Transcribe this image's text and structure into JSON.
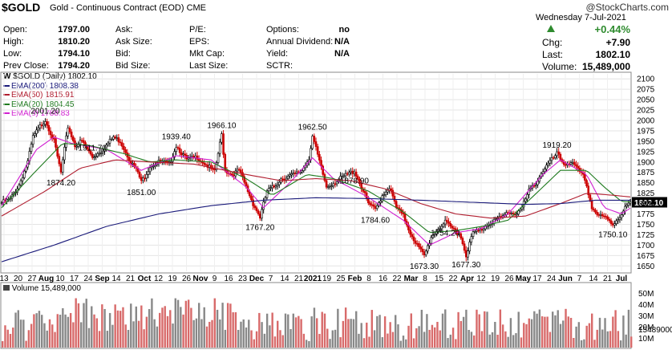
{
  "header": {
    "symbol": "$GOLD",
    "description": "Gold - Continuous Contract (EOD)",
    "exchange": "CME",
    "stamp": "@StockCharts.com",
    "date_line": "Wednesday  7-Jul-2021",
    "change_pct": "+0.44%",
    "col1": [
      {
        "label": "Open:",
        "value": "1797.00"
      },
      {
        "label": "High:",
        "value": "1810.20"
      },
      {
        "label": "Low:",
        "value": "1794.10"
      },
      {
        "label": "Prev Close:",
        "value": "1794.20"
      }
    ],
    "col2": [
      {
        "label": "Ask:",
        "value": ""
      },
      {
        "label": "Ask Size:",
        "value": ""
      },
      {
        "label": "Bid:",
        "value": ""
      },
      {
        "label": "Bid Size:",
        "value": ""
      }
    ],
    "col3": [
      {
        "label": "P/E:",
        "value": ""
      },
      {
        "label": "EPS:",
        "value": ""
      },
      {
        "label": "Mkt Cap:",
        "value": ""
      },
      {
        "label": "Last Size:",
        "value": ""
      }
    ],
    "col4": [
      {
        "label": "Options:",
        "value": "no"
      },
      {
        "label": "Annual Dividend:",
        "value": "N/A"
      },
      {
        "label": "Yield:",
        "value": "N/A"
      },
      {
        "label": "SCTR:",
        "value": ""
      }
    ],
    "col5": [
      {
        "label": "Chg:",
        "value": "+7.90"
      },
      {
        "label": "Last:",
        "value": "1802.10"
      },
      {
        "label": "Volume:",
        "value": "15,489,000"
      }
    ],
    "colors": {
      "up": "#2e8b2e",
      "down": "#cc0000",
      "price_badge": "#000000"
    }
  },
  "legend": {
    "title": "$GOLD (Daily) 1802.10",
    "items": [
      {
        "text": "EMA(200) 1808.38",
        "color": "#1a1a7a"
      },
      {
        "text": "EMA(50) 1815.91",
        "color": "#b01c2e"
      },
      {
        "text": "EMA(20) 1804.45",
        "color": "#1f7a1f"
      },
      {
        "text": "EMA(8) 1788.83",
        "color": "#d11fd1"
      }
    ]
  },
  "volume_label": "Volume 15,489,000",
  "chart_data": {
    "type": "line",
    "title": "$GOLD (Daily) 1802.10",
    "y_ticks": [
      1650,
      1675,
      1700,
      1725,
      1750,
      1775,
      1800,
      1825,
      1850,
      1875,
      1900,
      1925,
      1950,
      1975,
      2000,
      2025,
      2050,
      2075,
      2100
    ],
    "ylim": [
      1637,
      2112
    ],
    "x_tick_labels": [
      "13",
      "20",
      "27",
      "Aug",
      "10",
      "17",
      "24",
      "Sep",
      "14",
      "21",
      "Oct",
      "12",
      "19",
      "26",
      "Nov",
      "9",
      "16",
      "23",
      "Dec",
      "7",
      "14",
      "21",
      "2021",
      "19",
      "25",
      "Feb",
      "8",
      "16",
      "22",
      "Mar",
      "8",
      "15",
      "22",
      "Apr",
      "12",
      "19",
      "26",
      "May",
      "17",
      "24",
      "Jun",
      "7",
      "14",
      "21",
      "Jul"
    ],
    "series": [
      {
        "name": "$GOLD",
        "values": [
          [
            0,
            1802
          ],
          [
            5,
            1810
          ],
          [
            10,
            1845
          ],
          [
            15,
            1900
          ],
          [
            18,
            1960
          ],
          [
            22,
            1985
          ],
          [
            25,
            2001.2
          ],
          [
            30,
            1950
          ],
          [
            34,
            1874.2
          ],
          [
            38,
            1985
          ],
          [
            42,
            1940
          ],
          [
            46,
            1950
          ],
          [
            52,
            1911.7
          ],
          [
            58,
            1930
          ],
          [
            64,
            1960
          ],
          [
            68,
            1950
          ],
          [
            74,
            1900
          ],
          [
            78,
            1875
          ],
          [
            80,
            1851
          ],
          [
            85,
            1890
          ],
          [
            90,
            1900
          ],
          [
            96,
            1895
          ],
          [
            100,
            1939.4
          ],
          [
            106,
            1905
          ],
          [
            112,
            1912
          ],
          [
            118,
            1890
          ],
          [
            122,
            1875
          ],
          [
            126,
            1966.1
          ],
          [
            128,
            1880
          ],
          [
            132,
            1870
          ],
          [
            136,
            1880
          ],
          [
            140,
            1840
          ],
          [
            144,
            1800
          ],
          [
            148,
            1767.2
          ],
          [
            152,
            1830
          ],
          [
            156,
            1840
          ],
          [
            160,
            1860
          ],
          [
            164,
            1865
          ],
          [
            168,
            1870
          ],
          [
            172,
            1880
          ],
          [
            176,
            1910
          ],
          [
            178,
            1962.5
          ],
          [
            182,
            1900
          ],
          [
            186,
            1840
          ],
          [
            190,
            1850
          ],
          [
            194,
            1860
          ],
          [
            198,
            1870
          ],
          [
            202,
            1878.9
          ],
          [
            206,
            1840
          ],
          [
            210,
            1800
          ],
          [
            214,
            1784.6
          ],
          [
            218,
            1820
          ],
          [
            222,
            1840
          ],
          [
            226,
            1790
          ],
          [
            230,
            1770
          ],
          [
            234,
            1730
          ],
          [
            238,
            1700
          ],
          [
            242,
            1673.3
          ],
          [
            246,
            1720
          ],
          [
            250,
            1740
          ],
          [
            254,
            1754.2
          ],
          [
            258,
            1740
          ],
          [
            262,
            1730
          ],
          [
            266,
            1677.3
          ],
          [
            270,
            1730
          ],
          [
            274,
            1735
          ],
          [
            278,
            1750
          ],
          [
            282,
            1760
          ],
          [
            286,
            1765
          ],
          [
            290,
            1780
          ],
          [
            294,
            1775
          ],
          [
            298,
            1790
          ],
          [
            302,
            1830
          ],
          [
            306,
            1850
          ],
          [
            310,
            1880
          ],
          [
            314,
            1900
          ],
          [
            318,
            1919.2
          ],
          [
            322,
            1895
          ],
          [
            326,
            1900
          ],
          [
            330,
            1880
          ],
          [
            334,
            1860
          ],
          [
            338,
            1790
          ],
          [
            342,
            1770
          ],
          [
            346,
            1765
          ],
          [
            350,
            1750.1
          ],
          [
            354,
            1770
          ],
          [
            358,
            1795
          ],
          [
            360,
            1802.1
          ]
        ]
      },
      {
        "name": "EMA(8)",
        "values": [
          [
            0,
            1795
          ],
          [
            20,
            1930
          ],
          [
            30,
            1960
          ],
          [
            40,
            1945
          ],
          [
            60,
            1930
          ],
          [
            80,
            1880
          ],
          [
            100,
            1915
          ],
          [
            120,
            1905
          ],
          [
            140,
            1840
          ],
          [
            150,
            1790
          ],
          [
            165,
            1850
          ],
          [
            178,
            1910
          ],
          [
            190,
            1860
          ],
          [
            210,
            1815
          ],
          [
            230,
            1760
          ],
          [
            245,
            1700
          ],
          [
            260,
            1730
          ],
          [
            275,
            1740
          ],
          [
            290,
            1775
          ],
          [
            310,
            1870
          ],
          [
            320,
            1905
          ],
          [
            335,
            1870
          ],
          [
            345,
            1790
          ],
          [
            355,
            1775
          ],
          [
            360,
            1789
          ]
        ]
      },
      {
        "name": "EMA(20)",
        "values": [
          [
            0,
            1790
          ],
          [
            20,
            1880
          ],
          [
            35,
            1945
          ],
          [
            50,
            1940
          ],
          [
            70,
            1920
          ],
          [
            85,
            1900
          ],
          [
            100,
            1905
          ],
          [
            120,
            1900
          ],
          [
            140,
            1860
          ],
          [
            155,
            1820
          ],
          [
            175,
            1870
          ],
          [
            190,
            1860
          ],
          [
            210,
            1830
          ],
          [
            230,
            1780
          ],
          [
            245,
            1730
          ],
          [
            260,
            1735
          ],
          [
            275,
            1745
          ],
          [
            290,
            1760
          ],
          [
            305,
            1820
          ],
          [
            320,
            1880
          ],
          [
            335,
            1880
          ],
          [
            345,
            1840
          ],
          [
            355,
            1805
          ],
          [
            360,
            1804
          ]
        ]
      },
      {
        "name": "EMA(50)",
        "values": [
          [
            0,
            1770
          ],
          [
            25,
            1830
          ],
          [
            45,
            1885
          ],
          [
            65,
            1905
          ],
          [
            85,
            1900
          ],
          [
            110,
            1895
          ],
          [
            140,
            1870
          ],
          [
            160,
            1855
          ],
          [
            180,
            1860
          ],
          [
            200,
            1855
          ],
          [
            220,
            1835
          ],
          [
            240,
            1800
          ],
          [
            260,
            1775
          ],
          [
            280,
            1765
          ],
          [
            300,
            1770
          ],
          [
            320,
            1800
          ],
          [
            335,
            1825
          ],
          [
            350,
            1820
          ],
          [
            360,
            1816
          ]
        ]
      },
      {
        "name": "EMA(200)",
        "values": [
          [
            0,
            1660
          ],
          [
            30,
            1700
          ],
          [
            60,
            1745
          ],
          [
            90,
            1775
          ],
          [
            120,
            1795
          ],
          [
            150,
            1808
          ],
          [
            180,
            1814
          ],
          [
            210,
            1812
          ],
          [
            240,
            1808
          ],
          [
            270,
            1803
          ],
          [
            300,
            1798
          ],
          [
            320,
            1800
          ],
          [
            340,
            1808
          ],
          [
            360,
            1808
          ]
        ]
      }
    ],
    "price_labels": [
      {
        "x": 25,
        "value": "2001.20"
      },
      {
        "x": 34,
        "value": "1874.20"
      },
      {
        "x": 52,
        "value": "1911.70"
      },
      {
        "x": 80,
        "value": "1851.00"
      },
      {
        "x": 100,
        "value": "1939.40"
      },
      {
        "x": 126,
        "value": "1966.10"
      },
      {
        "x": 148,
        "value": "1767.20"
      },
      {
        "x": 178,
        "value": "1962.50"
      },
      {
        "x": 202,
        "value": "1878.90"
      },
      {
        "x": 214,
        "value": "1784.60"
      },
      {
        "x": 242,
        "value": "1673.30"
      },
      {
        "x": 254,
        "value": "1754.20"
      },
      {
        "x": 266,
        "value": "1677.30"
      },
      {
        "x": 318,
        "value": "1919.20"
      },
      {
        "x": 350,
        "value": "1750.10"
      }
    ],
    "last_price_badge": "1802.10",
    "volume_ticks": [
      "50M",
      "40M",
      "30M",
      "20M",
      "10M",
      "15489000"
    ]
  }
}
